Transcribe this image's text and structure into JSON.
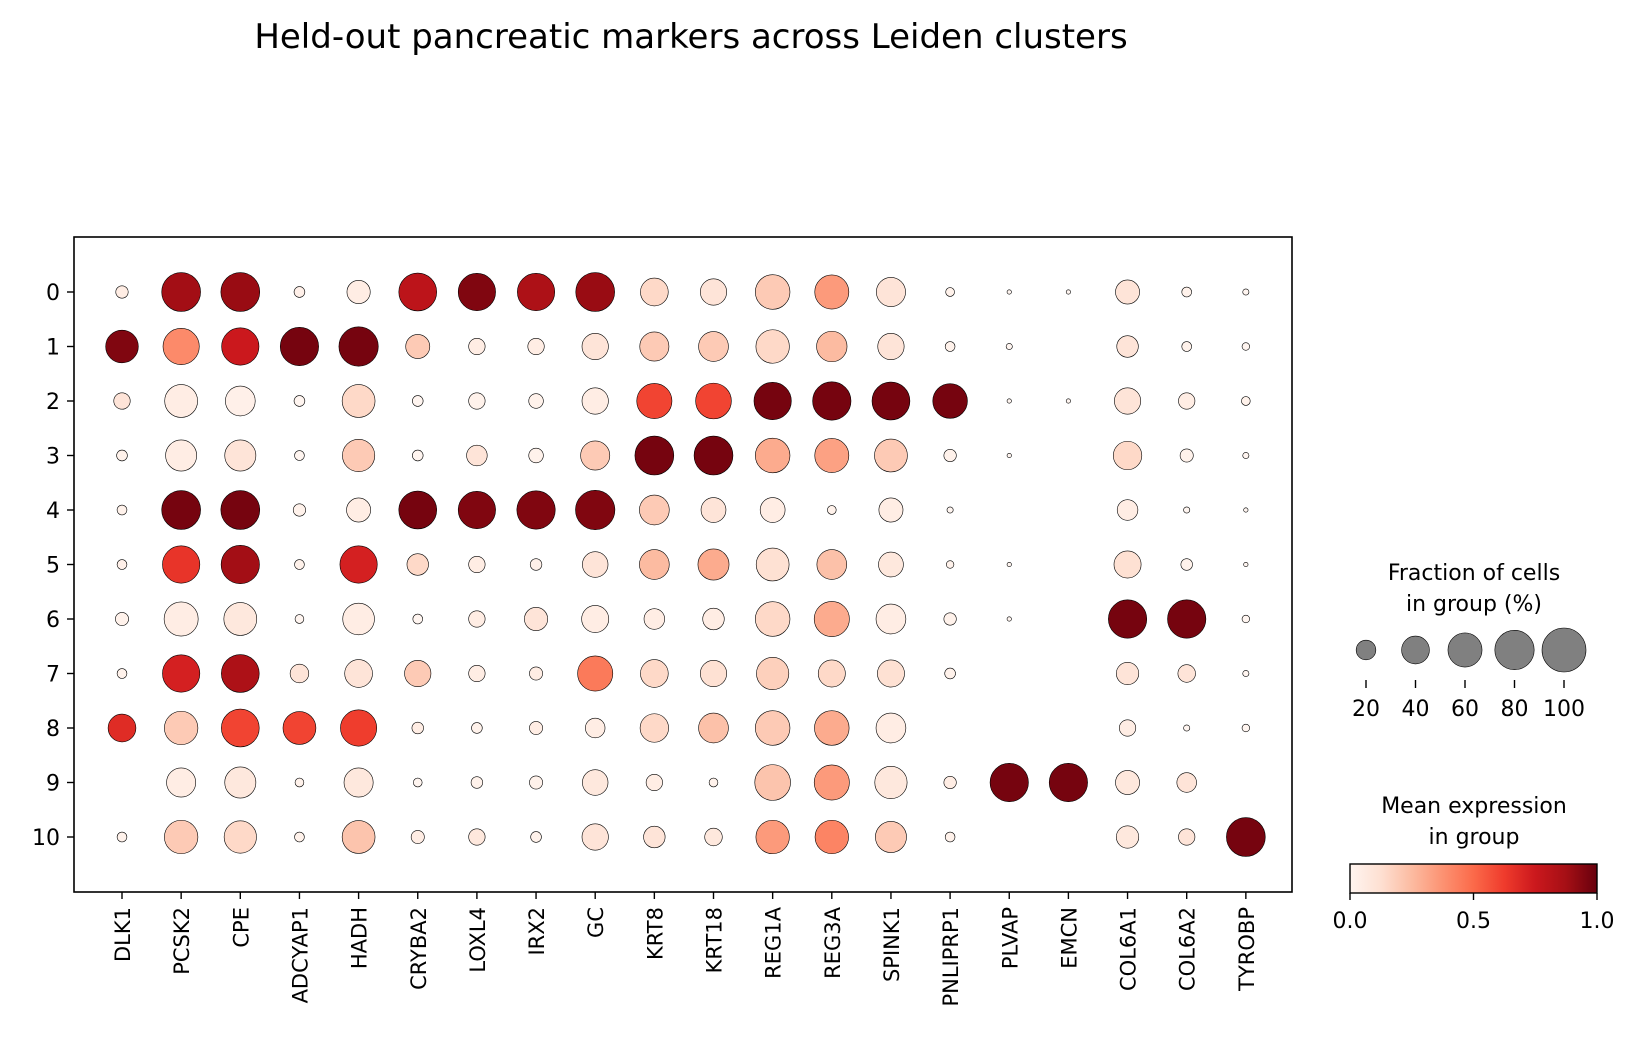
{
  "chart_data": {
    "type": "dotplot",
    "title": "Held-out pancreatic markers across Leiden clusters",
    "genes": [
      "DLK1",
      "PCSK2",
      "CPE",
      "ADCYAP1",
      "HADH",
      "CRYBA2",
      "LOXL4",
      "IRX2",
      "GC",
      "KRT8",
      "KRT18",
      "REG1A",
      "REG3A",
      "SPINK1",
      "PNLIPRP1",
      "PLVAP",
      "EMCN",
      "COL6A1",
      "COL6A2",
      "TYROBP"
    ],
    "clusters": [
      "0",
      "1",
      "2",
      "3",
      "4",
      "5",
      "6",
      "7",
      "8",
      "9",
      "10"
    ],
    "fraction_pct": [
      [
        8,
        78,
        78,
        6,
        28,
        74,
        72,
        72,
        78,
        40,
        36,
        62,
        60,
        44,
        4,
        1,
        1,
        30,
        5,
        2
      ],
      [
        55,
        68,
        72,
        76,
        80,
        30,
        14,
        14,
        36,
        44,
        46,
        58,
        48,
        36,
        5,
        2,
        0,
        24,
        5,
        3
      ],
      [
        14,
        56,
        46,
        6,
        56,
        6,
        14,
        11,
        36,
        64,
        66,
        72,
        76,
        74,
        62,
        1,
        1,
        36,
        14,
        4
      ],
      [
        6,
        50,
        50,
        5,
        54,
        6,
        22,
        11,
        44,
        78,
        78,
        62,
        60,
        56,
        8,
        1,
        0,
        42,
        9,
        2
      ],
      [
        5,
        78,
        78,
        8,
        30,
        74,
        72,
        76,
        80,
        46,
        32,
        32,
        4,
        30,
        2,
        0,
        0,
        22,
        2,
        1
      ],
      [
        5,
        72,
        76,
        5,
        72,
        24,
        14,
        7,
        34,
        46,
        50,
        56,
        46,
        32,
        3,
        1,
        0,
        38,
        7,
        1
      ],
      [
        9,
        60,
        56,
        4,
        52,
        5,
        14,
        28,
        38,
        22,
        24,
        62,
        64,
        46,
        8,
        1,
        0,
        76,
        76,
        3
      ],
      [
        5,
        72,
        74,
        18,
        40,
        36,
        14,
        9,
        64,
        40,
        36,
        54,
        38,
        38,
        6,
        0,
        0,
        26,
        16,
        2
      ],
      [
        40,
        58,
        74,
        56,
        68,
        7,
        6,
        9,
        20,
        42,
        46,
        62,
        62,
        46,
        0,
        0,
        0,
        14,
        2,
        3
      ],
      [
        0,
        44,
        50,
        4,
        44,
        4,
        7,
        9,
        34,
        14,
        4,
        66,
        64,
        54,
        8,
        76,
        76,
        30,
        20,
        0
      ],
      [
        5,
        58,
        54,
        5,
        56,
        9,
        14,
        6,
        36,
        24,
        16,
        58,
        58,
        50,
        5,
        0,
        0,
        26,
        14,
        78
      ]
    ],
    "mean_expression": [
      [
        0.05,
        0.88,
        0.9,
        0.03,
        0.05,
        0.8,
        0.95,
        0.85,
        0.9,
        0.15,
        0.1,
        0.2,
        0.35,
        0.1,
        0.02,
        0.0,
        0.0,
        0.1,
        0.02,
        0.0
      ],
      [
        0.95,
        0.4,
        0.75,
        0.97,
        0.97,
        0.2,
        0.05,
        0.05,
        0.1,
        0.2,
        0.2,
        0.15,
        0.25,
        0.1,
        0.02,
        0.0,
        0.0,
        0.1,
        0.02,
        0.0
      ],
      [
        0.1,
        0.05,
        0.03,
        0.0,
        0.15,
        0.0,
        0.02,
        0.02,
        0.05,
        0.6,
        0.6,
        0.97,
        0.97,
        0.97,
        0.97,
        0.0,
        0.0,
        0.1,
        0.05,
        0.02
      ],
      [
        0.02,
        0.05,
        0.1,
        0.0,
        0.2,
        0.0,
        0.1,
        0.02,
        0.2,
        0.97,
        0.97,
        0.3,
        0.33,
        0.2,
        0.02,
        0.0,
        0.0,
        0.15,
        0.02,
        0.0
      ],
      [
        0.02,
        0.97,
        0.97,
        0.02,
        0.05,
        0.97,
        0.95,
        0.95,
        0.95,
        0.2,
        0.1,
        0.05,
        0.02,
        0.05,
        0.0,
        0.0,
        0.0,
        0.05,
        0.0,
        0.0
      ],
      [
        0.03,
        0.65,
        0.88,
        0.02,
        0.72,
        0.15,
        0.05,
        0.03,
        0.1,
        0.25,
        0.3,
        0.12,
        0.23,
        0.08,
        0.02,
        0.0,
        0.0,
        0.12,
        0.02,
        0.0
      ],
      [
        0.02,
        0.05,
        0.08,
        0.0,
        0.05,
        0.0,
        0.05,
        0.1,
        0.05,
        0.05,
        0.05,
        0.15,
        0.3,
        0.05,
        0.02,
        0.0,
        0.0,
        0.97,
        0.97,
        0.0
      ],
      [
        0.02,
        0.72,
        0.85,
        0.1,
        0.1,
        0.2,
        0.05,
        0.05,
        0.45,
        0.15,
        0.12,
        0.18,
        0.15,
        0.12,
        0.02,
        0.0,
        0.0,
        0.1,
        0.1,
        0.0
      ],
      [
        0.68,
        0.2,
        0.6,
        0.6,
        0.62,
        0.05,
        0.02,
        0.05,
        0.05,
        0.15,
        0.23,
        0.2,
        0.3,
        0.05,
        0.0,
        0.0,
        0.0,
        0.05,
        0.0,
        0.0
      ],
      [
        0.0,
        0.05,
        0.08,
        0.02,
        0.08,
        0.0,
        0.02,
        0.02,
        0.08,
        0.05,
        0.02,
        0.22,
        0.35,
        0.08,
        0.05,
        0.97,
        0.97,
        0.08,
        0.1,
        0.0
      ],
      [
        0.02,
        0.2,
        0.15,
        0.02,
        0.22,
        0.05,
        0.08,
        0.02,
        0.1,
        0.1,
        0.08,
        0.35,
        0.42,
        0.2,
        0.02,
        0.0,
        0.0,
        0.08,
        0.1,
        0.97
      ]
    ],
    "size_legend": {
      "title_lines": [
        "Fraction of cells",
        "in group (%)"
      ],
      "values": [
        20,
        40,
        60,
        80,
        100
      ],
      "tick_labels": [
        "20",
        "40",
        "60",
        "80",
        "100"
      ]
    },
    "color_legend": {
      "title_lines": [
        "Mean expression",
        "in group"
      ],
      "range": [
        0.0,
        1.0
      ],
      "tick_labels": [
        "0.0",
        "0.5",
        "1.0"
      ],
      "colormap_stops": [
        "#fff5f0",
        "#fee0d2",
        "#fcbba1",
        "#fc9272",
        "#fb6a4a",
        "#ef3b2c",
        "#cb181d",
        "#a50f15",
        "#67000d"
      ]
    },
    "xlabel": "",
    "ylabel": ""
  }
}
